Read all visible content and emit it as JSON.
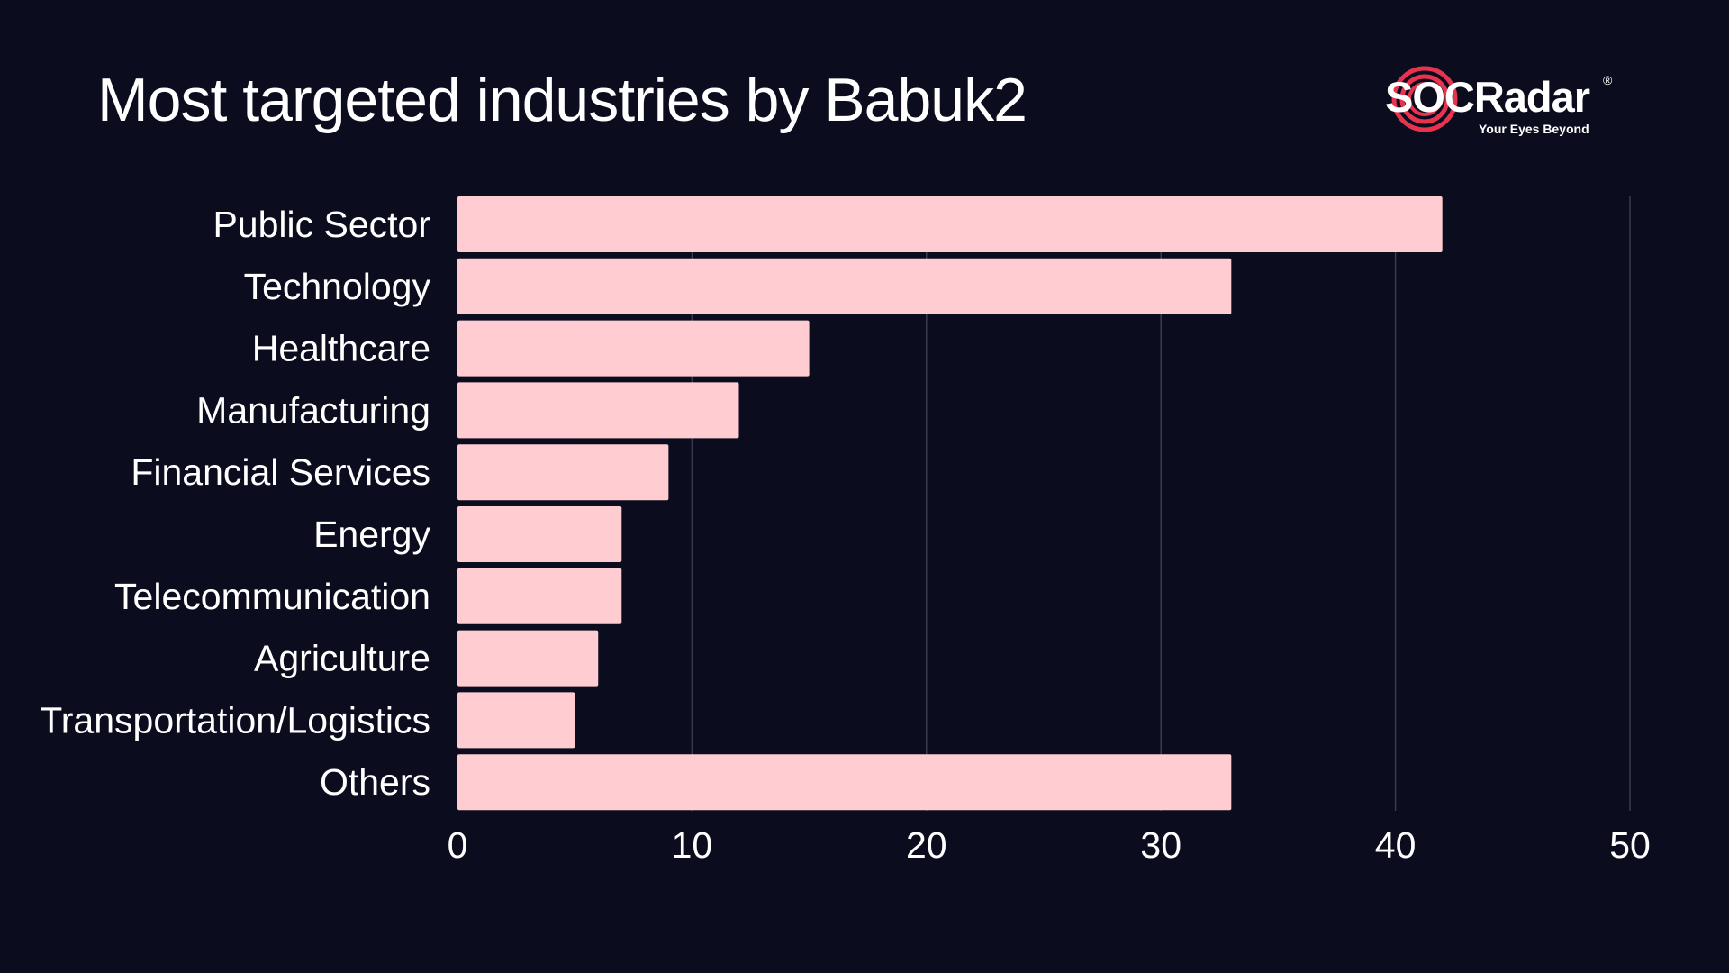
{
  "chart_data": {
    "type": "bar",
    "orientation": "horizontal",
    "title": "Most targeted industries by Babuk2",
    "categories": [
      "Public Sector",
      "Technology",
      "Healthcare",
      "Manufacturing",
      "Financial Services",
      "Energy",
      "Telecommunication",
      "Agriculture",
      "Transportation/Logistics",
      "Others"
    ],
    "values": [
      42,
      33,
      15,
      12,
      9,
      7,
      7,
      6,
      5,
      33
    ],
    "xlim": [
      0,
      50
    ],
    "xticks": [
      "0",
      "10",
      "20",
      "30",
      "40",
      "50"
    ],
    "grid": "vertical",
    "bar_color": "#ffccd2",
    "background_color": "#0b0c1e",
    "gridline_color": "#3a3b52"
  },
  "logo": {
    "brand": "SOCRadar",
    "tagline": "Your Eyes Beyond",
    "registered_mark": "®",
    "accent_color": "#e8334f"
  }
}
